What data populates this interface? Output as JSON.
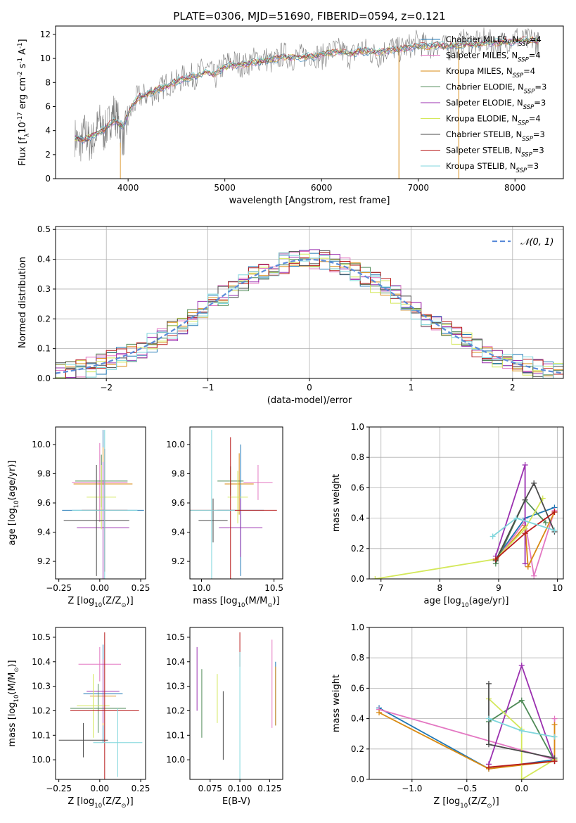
{
  "figure_title": "PLATE=0306, MJD=51690, FIBERID=0594, z=0.121",
  "series": [
    {
      "name": "Chabrier MILES, N$_{SSP}$=4",
      "label_main": "Chabrier MILES, N",
      "label_sub": "SSP",
      "label_end": "=4",
      "color": "#1f77b4"
    },
    {
      "name": "Salpeter MILES, N$_{SSP}$=4",
      "label_main": "Salpeter MILES, N",
      "label_sub": "SSP",
      "label_end": "=4",
      "color": "#e377c2"
    },
    {
      "name": "Kroupa MILES, N$_{SSP}$=4",
      "label_main": "Kroupa MILES, N",
      "label_sub": "SSP",
      "label_end": "=4",
      "color": "#d98a12"
    },
    {
      "name": "Chabrier ELODIE, N$_{SSP}$=3",
      "label_main": "Chabrier ELODIE, N",
      "label_sub": "SSP",
      "label_end": "=3",
      "color": "#4f8a57"
    },
    {
      "name": "Salpeter ELODIE, N$_{SSP}$=3",
      "label_main": "Salpeter ELODIE, N",
      "label_sub": "SSP",
      "label_end": "=3",
      "color": "#9b30b0"
    },
    {
      "name": "Kroupa ELODIE, N$_{SSP}$=4",
      "label_main": "Kroupa ELODIE, N",
      "label_sub": "SSP",
      "label_end": "=4",
      "color": "#d4e85a"
    },
    {
      "name": "Chabrier STELIB, N$_{SSP}$=3",
      "label_main": "Chabrier STELIB, N",
      "label_sub": "SSP",
      "label_end": "=3",
      "color": "#4a4a4a"
    },
    {
      "name": "Salpeter STELIB, N$_{SSP}$=3",
      "label_main": "Salpeter STELIB, N",
      "label_sub": "SSP",
      "label_end": "=3",
      "color": "#b81c1c"
    },
    {
      "name": "Kroupa STELIB, N$_{SSP}$=3",
      "label_main": "Kroupa STELIB, N",
      "label_sub": "SSP",
      "label_end": "=3",
      "color": "#7fd6dc"
    }
  ],
  "chart_data": [
    {
      "id": "spectrum",
      "type": "line",
      "xlabel": "wavelength [Angstrom, rest frame]",
      "ylabel": "Flux [f$_\\lambda$10$^{-17}$ erg cm$^{-2}$ s$^{-1}$ A$^{-1}$]",
      "xlim": [
        3250,
        8500
      ],
      "ylim": [
        0,
        12.7
      ],
      "xticks": [
        4000,
        5000,
        6000,
        7000,
        8000
      ],
      "yticks": [
        0,
        2,
        4,
        6,
        8,
        10,
        12
      ],
      "grid": false,
      "legend": "right",
      "data_color": "#7f7f7f",
      "model_color": "#7fd6dc",
      "data_wave": [
        3450,
        3500,
        3550,
        3600,
        3650,
        3700,
        3750,
        3800,
        3850,
        3900,
        3950,
        4000,
        4100,
        4200,
        4300,
        4400,
        4500,
        4600,
        4700,
        4800,
        4900,
        5000,
        5100,
        5200,
        5300,
        5400,
        5500,
        5600,
        5700,
        5800,
        5900,
        6000,
        6100,
        6200,
        6300,
        6400,
        6500,
        6600,
        6700,
        6800,
        6900,
        7000,
        7100,
        7200,
        7300,
        7400,
        7500,
        7600,
        7700,
        7800,
        7900,
        8000,
        8100,
        8200,
        8250
      ],
      "data_flux": [
        3.5,
        2.7,
        3.9,
        3.0,
        3.3,
        4.8,
        3.8,
        4.6,
        5.6,
        4.7,
        3.2,
        5.0,
        6.8,
        7.0,
        7.2,
        7.9,
        8.0,
        8.6,
        8.5,
        9.3,
        8.4,
        9.6,
        9.7,
        9.4,
        9.9,
        10.1,
        9.6,
        10.4,
        10.0,
        10.2,
        10.4,
        10.1,
        10.6,
        10.7,
        10.1,
        10.9,
        10.5,
        10.2,
        11.0,
        10.7,
        11.0,
        11.4,
        10.9,
        11.2,
        10.8,
        11.1,
        11.5,
        11.2,
        11.6,
        11.0,
        11.4,
        11.8,
        11.4,
        11.6,
        11.1
      ],
      "model_wave": [
        3450,
        3550,
        3650,
        3750,
        3850,
        3950,
        4000,
        4100,
        4200,
        4300,
        4400,
        4500,
        4600,
        4700,
        4800,
        4900,
        5000,
        5100,
        5200,
        5300,
        5400,
        5500,
        5600,
        5700,
        5800,
        5900,
        6000,
        6100,
        6200,
        6300,
        6400,
        6500,
        6600,
        6700,
        6800,
        6900,
        7000,
        7100,
        7200,
        7300,
        7400,
        7500,
        7600,
        7700,
        7800,
        7900,
        8000,
        8100,
        8200,
        8250
      ],
      "model_flux": [
        3.4,
        3.2,
        3.7,
        4.1,
        4.8,
        4.4,
        5.4,
        6.7,
        7.1,
        7.4,
        7.7,
        8.1,
        8.4,
        8.5,
        8.9,
        8.7,
        9.3,
        9.5,
        9.5,
        9.7,
        9.8,
        9.9,
        10.1,
        10.1,
        10.1,
        10.2,
        10.3,
        10.5,
        10.5,
        10.4,
        10.6,
        10.6,
        10.5,
        10.7,
        10.8,
        10.9,
        11.0,
        11.0,
        11.1,
        11.0,
        11.1,
        11.2,
        11.2,
        11.3,
        11.3,
        11.4,
        11.4,
        11.5,
        11.5,
        11.4
      ]
    },
    {
      "id": "residual_histogram",
      "type": "line",
      "xlabel": "(data-model)/error",
      "ylabel": "Normed distribution",
      "xlim": [
        -2.5,
        2.5
      ],
      "ylim": [
        0,
        0.51
      ],
      "xticks": [
        -2,
        -1,
        0,
        1,
        2
      ],
      "yticks": [
        0.0,
        0.1,
        0.2,
        0.3,
        0.4,
        0.5
      ],
      "grid": true,
      "legend": "top-right",
      "legend_label": "\\mathcal{N}(0,1)",
      "gaussian_color": "#5b8bd9",
      "bin_width": 0.1,
      "bin_start": -2.5,
      "gaussian_mu": 0,
      "gaussian_sigma": 1
    },
    {
      "id": "age_vs_Z",
      "type": "scatter",
      "xlabel": "Z [log$_{10}$(Z/Z$_\\odot$)]",
      "ylabel": "age  [log$_{10}$(age/yr)]",
      "xlim": [
        -0.27,
        0.28
      ],
      "ylim": [
        9.08,
        10.12
      ],
      "xticks": [
        -0.25,
        0.0,
        0.25
      ],
      "yticks": [
        9.2,
        9.4,
        9.6,
        9.8,
        10.0
      ],
      "points": [
        {
          "series": 0,
          "x": 0.02,
          "y": 9.55,
          "xerr": 0.25,
          "yerr": 0.55
        },
        {
          "series": 1,
          "x": 0.0,
          "y": 9.74,
          "xerr": 0.17,
          "yerr": 0.27
        },
        {
          "series": 2,
          "x": 0.02,
          "y": 9.73,
          "xerr": 0.18,
          "yerr": 0.25
        },
        {
          "series": 3,
          "x": 0.01,
          "y": 9.75,
          "xerr": 0.16,
          "yerr": 0.18
        },
        {
          "series": 4,
          "x": 0.02,
          "y": 9.43,
          "xerr": 0.16,
          "yerr": 0.45
        },
        {
          "series": 5,
          "x": 0.01,
          "y": 9.64,
          "xerr": 0.09,
          "yerr": 0.22
        },
        {
          "series": 6,
          "x": -0.02,
          "y": 9.48,
          "xerr": 0.2,
          "yerr": 0.38
        },
        {
          "series": 7,
          "x": 0.03,
          "y": 9.55,
          "xerr": 0.14,
          "yerr": 0.42
        },
        {
          "series": 8,
          "x": 0.03,
          "y": 9.55,
          "xerr": 0.2,
          "yerr": 0.55
        }
      ]
    },
    {
      "id": "age_vs_mass",
      "type": "scatter",
      "xlabel": "mass [log$_{10}$(M/M$_\\odot$)]",
      "ylabel": "",
      "xlim": [
        9.92,
        10.56
      ],
      "ylim": [
        9.08,
        10.12
      ],
      "xticks": [
        10.0,
        10.5
      ],
      "yticks": [
        9.2,
        9.4,
        9.6,
        9.8,
        10.0
      ],
      "points": [
        {
          "series": 0,
          "x": 10.27,
          "y": 9.55,
          "xerr": 0.16,
          "yerr": 0.45
        },
        {
          "series": 1,
          "x": 10.39,
          "y": 9.74,
          "xerr": 0.1,
          "yerr": 0.12
        },
        {
          "series": 2,
          "x": 10.26,
          "y": 9.73,
          "xerr": 0.1,
          "yerr": 0.21
        },
        {
          "series": 3,
          "x": 10.2,
          "y": 9.75,
          "xerr": 0.09,
          "yerr": 0.1
        },
        {
          "series": 4,
          "x": 10.27,
          "y": 9.43,
          "xerr": 0.15,
          "yerr": 0.2
        },
        {
          "series": 5,
          "x": 10.25,
          "y": 9.64,
          "xerr": 0.07,
          "yerr": 0.18
        },
        {
          "series": 6,
          "x": 10.08,
          "y": 9.48,
          "xerr": 0.1,
          "yerr": 0.15
        },
        {
          "series": 7,
          "x": 10.2,
          "y": 9.55,
          "xerr": 0.32,
          "yerr": 0.5
        },
        {
          "series": 8,
          "x": 10.07,
          "y": 9.55,
          "xerr": 0.16,
          "yerr": 0.55
        }
      ]
    },
    {
      "id": "mass_weight_vs_age",
      "type": "line",
      "xlabel": "age  [log$_{10}$(age/yr)]",
      "ylabel": "mass weight",
      "xlim": [
        6.8,
        10.1
      ],
      "ylim": [
        0,
        1
      ],
      "xticks": [
        7,
        8,
        9,
        10
      ],
      "yticks": [
        0.0,
        0.2,
        0.4,
        0.6,
        0.8,
        1.0
      ],
      "grid": true,
      "series_points": [
        {
          "series": 0,
          "x": [
            8.95,
            9.45,
            9.95
          ],
          "y": [
            0.13,
            0.4,
            0.47
          ]
        },
        {
          "series": 1,
          "x": [
            8.95,
            9.45,
            9.6,
            9.95
          ],
          "y": [
            0.12,
            0.38,
            0.02,
            0.45
          ]
        },
        {
          "series": 2,
          "x": [
            8.95,
            9.45,
            9.5,
            9.95
          ],
          "y": [
            0.12,
            0.35,
            0.08,
            0.44
          ]
        },
        {
          "series": 3,
          "x": [
            8.95,
            9.45,
            9.8
          ],
          "y": [
            0.1,
            0.52,
            0.37
          ]
        },
        {
          "series": 4,
          "x": [
            8.95,
            9.45,
            9.45
          ],
          "y": [
            0.15,
            0.75,
            0.1
          ]
        },
        {
          "series": 5,
          "x": [
            6.9,
            8.95,
            9.45,
            9.75
          ],
          "y": [
            0.0,
            0.13,
            0.33,
            0.53
          ]
        },
        {
          "series": 6,
          "x": [
            8.95,
            9.45,
            9.6,
            9.95
          ],
          "y": [
            0.12,
            0.52,
            0.63,
            0.31
          ]
        },
        {
          "series": 7,
          "x": [
            8.95,
            9.45,
            9.95
          ],
          "y": [
            0.13,
            0.3,
            0.44
          ]
        },
        {
          "series": 8,
          "x": [
            8.9,
            9.3,
            9.95
          ],
          "y": [
            0.28,
            0.4,
            0.32
          ]
        }
      ]
    },
    {
      "id": "mass_vs_Z",
      "type": "scatter",
      "xlabel": "Z [log$_{10}$(Z/Z$_\\odot$)]",
      "ylabel": "mass [log$_{10}$(M/M$_\\odot$)]",
      "xlim": [
        -0.27,
        0.28
      ],
      "ylim": [
        9.92,
        10.54
      ],
      "xticks": [
        -0.25,
        0.0,
        0.25
      ],
      "yticks": [
        10.0,
        10.1,
        10.2,
        10.3,
        10.4,
        10.5
      ],
      "points": [
        {
          "series": 0,
          "x": 0.02,
          "y": 10.27,
          "xerr": 0.12,
          "yerr": 0.2
        },
        {
          "series": 1,
          "x": 0.0,
          "y": 10.39,
          "xerr": 0.13,
          "yerr": 0.07
        },
        {
          "series": 2,
          "x": 0.02,
          "y": 10.26,
          "xerr": 0.08,
          "yerr": 0.12
        },
        {
          "series": 3,
          "x": -0.01,
          "y": 10.21,
          "xerr": 0.17,
          "yerr": 0.1
        },
        {
          "series": 4,
          "x": 0.02,
          "y": 10.28,
          "xerr": 0.1,
          "yerr": 0.13
        },
        {
          "series": 5,
          "x": -0.04,
          "y": 10.22,
          "xerr": 0.1,
          "yerr": 0.13
        },
        {
          "series": 6,
          "x": -0.1,
          "y": 10.08,
          "xerr": 0.15,
          "yerr": 0.07
        },
        {
          "series": 7,
          "x": 0.03,
          "y": 10.2,
          "xerr": 0.21,
          "yerr": 0.32
        },
        {
          "series": 8,
          "x": 0.11,
          "y": 10.07,
          "xerr": 0.15,
          "yerr": 0.14
        }
      ]
    },
    {
      "id": "mass_vs_EBV",
      "type": "scatter",
      "xlabel": "E(B-V)",
      "ylabel": "",
      "xlim": [
        0.058,
        0.136
      ],
      "ylim": [
        9.92,
        10.54
      ],
      "xticks": [
        0.075,
        0.1,
        0.125
      ],
      "xtick_labels": [
        "0.075",
        "0.100",
        "0.125"
      ],
      "yticks": [
        10.0,
        10.1,
        10.2,
        10.3,
        10.4,
        10.5
      ],
      "points": [
        {
          "series": 0,
          "x": 0.13,
          "y": 10.27,
          "yerr": 0.13
        },
        {
          "series": 1,
          "x": 0.127,
          "y": 10.31,
          "yerr": 0.18
        },
        {
          "series": 2,
          "x": 0.13,
          "y": 10.26,
          "yerr": 0.12
        },
        {
          "series": 3,
          "x": 0.068,
          "y": 10.23,
          "yerr": 0.14
        },
        {
          "series": 4,
          "x": 0.064,
          "y": 10.33,
          "yerr": 0.13
        },
        {
          "series": 5,
          "x": 0.081,
          "y": 10.25,
          "yerr": 0.1
        },
        {
          "series": 6,
          "x": 0.086,
          "y": 10.14,
          "yerr": 0.14
        },
        {
          "series": 7,
          "x": 0.1,
          "y": 10.45,
          "yerr": 0.07
        },
        {
          "series": 8,
          "x": 0.1,
          "y": 10.17,
          "yerr": 0.27
        }
      ]
    },
    {
      "id": "mass_weight_vs_Z",
      "type": "line",
      "xlabel": "Z [log$_{10}$(Z/Z$_\\odot$)]",
      "ylabel": "mass weight",
      "xlim": [
        -1.39,
        0.38
      ],
      "ylim": [
        0,
        1
      ],
      "xticks": [
        -1.0,
        -0.5,
        0.0
      ],
      "yticks": [
        0.0,
        0.2,
        0.4,
        0.6,
        0.8,
        1.0
      ],
      "grid": true,
      "series_points": [
        {
          "series": 0,
          "x": [
            -1.3,
            -0.3,
            0.3
          ],
          "y": [
            0.47,
            0.07,
            0.13
          ]
        },
        {
          "series": 1,
          "x": [
            -1.3,
            0.3,
            0.3
          ],
          "y": [
            0.46,
            0.13,
            0.4
          ]
        },
        {
          "series": 2,
          "x": [
            -1.3,
            -0.3,
            0.3,
            0.3
          ],
          "y": [
            0.44,
            0.07,
            0.12,
            0.36
          ]
        },
        {
          "series": 3,
          "x": [
            -0.3,
            0.0,
            0.3
          ],
          "y": [
            0.38,
            0.52,
            0.12
          ]
        },
        {
          "series": 4,
          "x": [
            -0.3,
            0.0,
            0.3
          ],
          "y": [
            0.1,
            0.75,
            0.12
          ]
        },
        {
          "series": 5,
          "x": [
            -0.3,
            0.0,
            0.0,
            0.3
          ],
          "y": [
            0.53,
            0.33,
            0.0,
            0.13
          ]
        },
        {
          "series": 6,
          "x": [
            -0.3,
            -0.3,
            0.3
          ],
          "y": [
            0.63,
            0.23,
            0.14
          ]
        },
        {
          "series": 7,
          "x": [
            -0.3,
            0.3
          ],
          "y": [
            0.08,
            0.12
          ]
        },
        {
          "series": 8,
          "x": [
            -0.3,
            0.0,
            0.3
          ],
          "y": [
            0.4,
            0.32,
            0.28
          ]
        }
      ]
    }
  ]
}
